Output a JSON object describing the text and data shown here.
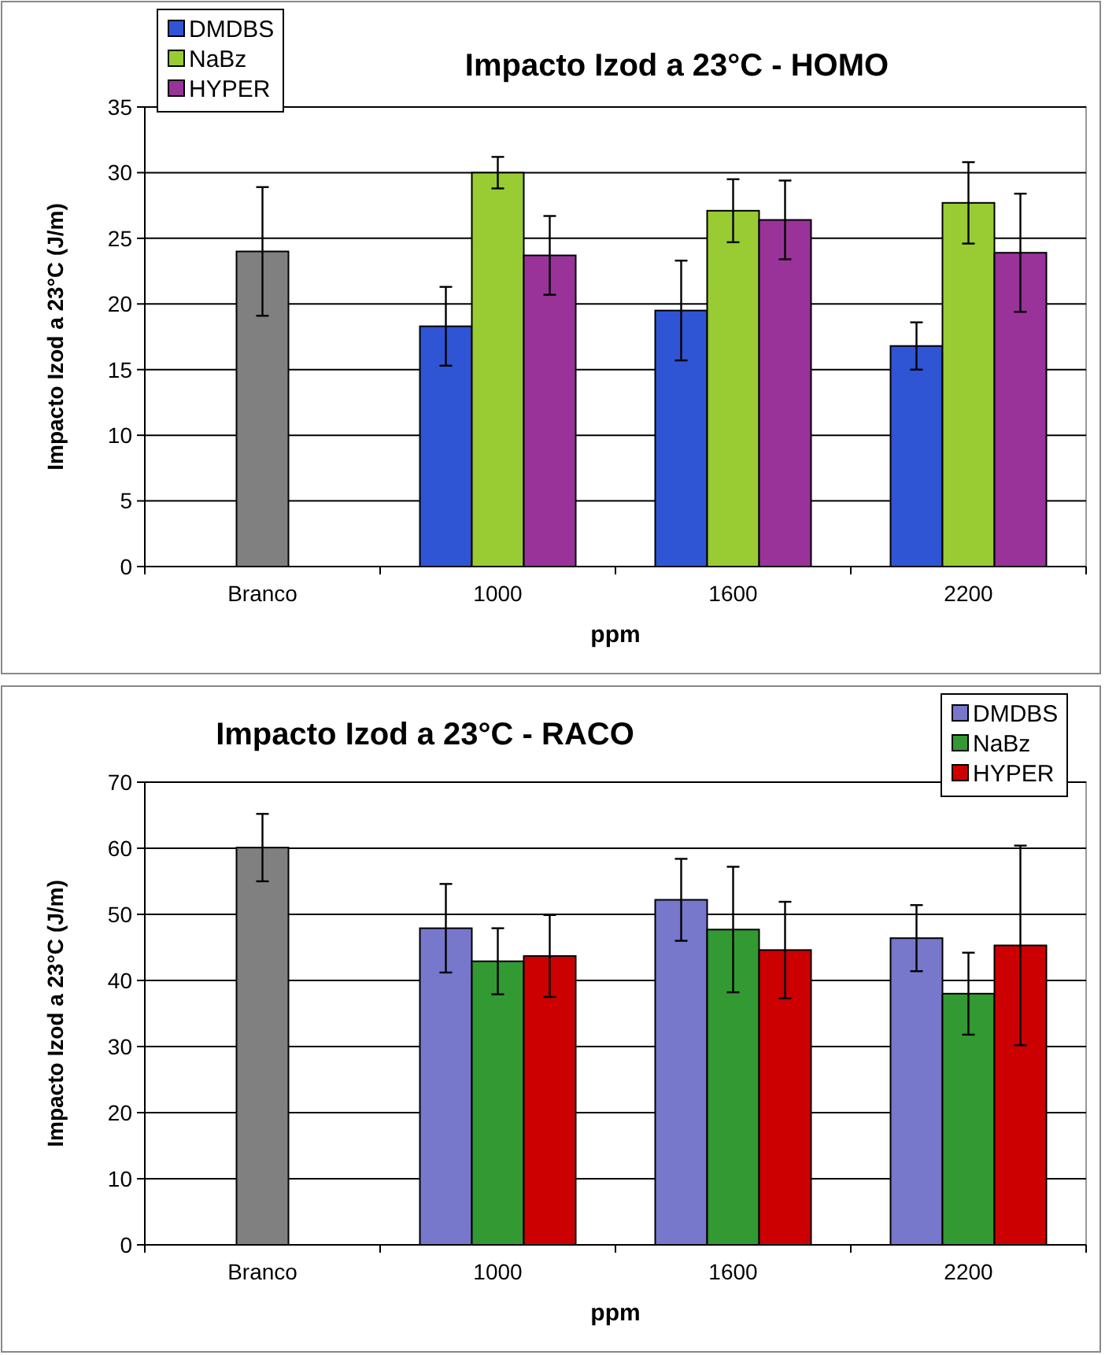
{
  "chart_data": [
    {
      "type": "bar",
      "title": "Impacto Izod a 23°C - HOMO",
      "xlabel": "ppm",
      "ylabel": "Impacto Izod a 23°C  (J/m)",
      "categories": [
        "Branco",
        "1000",
        "1600",
        "2200"
      ],
      "ylim": [
        0,
        35
      ],
      "yticks": [
        0,
        5,
        10,
        15,
        20,
        25,
        30,
        35
      ],
      "grid": "y",
      "legend": "top left",
      "series": [
        {
          "color": "#808080",
          "values": [
            24,
            null,
            null,
            null
          ],
          "errors": [
            4.9,
            null,
            null,
            null
          ]
        },
        {
          "name": "DMDBS",
          "color": "#2f55d4",
          "values": [
            null,
            18.3,
            19.5,
            16.8
          ],
          "errors": [
            null,
            3.0,
            3.8,
            1.8
          ]
        },
        {
          "name": "NaBz",
          "color": "#99cc33",
          "values": [
            null,
            30.0,
            27.1,
            27.7
          ],
          "errors": [
            null,
            1.2,
            2.4,
            3.1
          ]
        },
        {
          "name": "HYPER",
          "color": "#993399",
          "values": [
            null,
            23.7,
            26.4,
            23.9
          ],
          "errors": [
            null,
            3.0,
            3.0,
            4.5
          ]
        }
      ]
    },
    {
      "type": "bar",
      "title": "Impacto Izod a 23°C - RACO",
      "xlabel": "ppm",
      "ylabel": "Impacto Izod a 23°C  (J/m)",
      "categories": [
        "Branco",
        "1000",
        "1600",
        "2200"
      ],
      "ylim": [
        0,
        70
      ],
      "yticks": [
        0,
        10,
        20,
        30,
        40,
        50,
        60,
        70
      ],
      "grid": "y",
      "legend": "top right",
      "series": [
        {
          "color": "#808080",
          "values": [
            60.1,
            null,
            null,
            null
          ],
          "errors": [
            5.1,
            null,
            null,
            null
          ]
        },
        {
          "name": "DMDBS",
          "color": "#7777cc",
          "values": [
            null,
            47.9,
            52.2,
            46.4
          ],
          "errors": [
            null,
            6.7,
            6.2,
            5.0
          ]
        },
        {
          "name": "NaBz",
          "color": "#339933",
          "values": [
            null,
            42.9,
            47.7,
            38.0
          ],
          "errors": [
            null,
            5.0,
            9.5,
            6.2
          ]
        },
        {
          "name": "HYPER",
          "color": "#cc0000",
          "values": [
            null,
            43.7,
            44.6,
            45.3
          ],
          "errors": [
            null,
            6.2,
            7.3,
            15.1
          ]
        }
      ]
    }
  ]
}
